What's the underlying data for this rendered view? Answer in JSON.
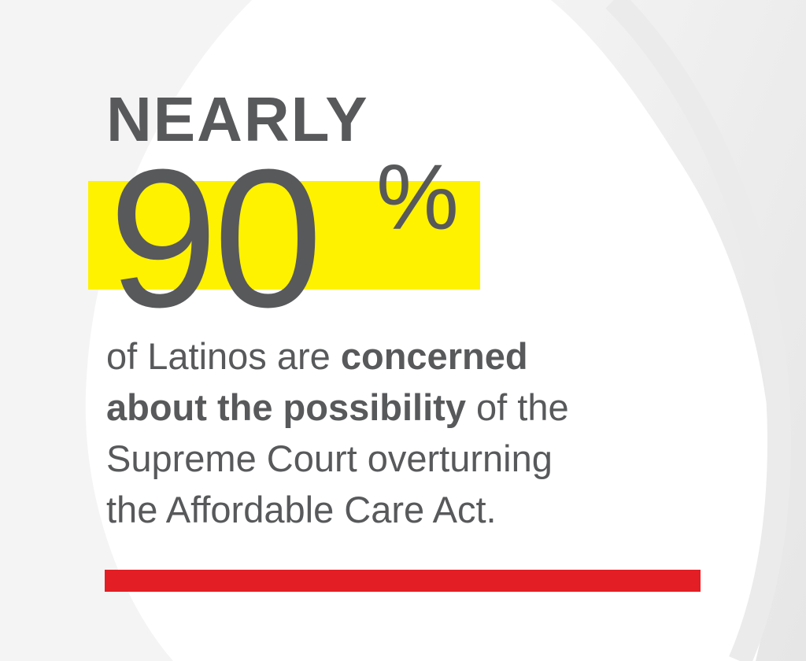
{
  "header": {
    "eyebrow": "NEARLY",
    "figure": "90",
    "unit": "%"
  },
  "statement": {
    "lines": [
      [
        {
          "text": "of Latinos are ",
          "bold": false
        },
        {
          "text": "concerned",
          "bold": true
        }
      ],
      [
        {
          "text": "about the possibility",
          "bold": true
        },
        {
          "text": " of the",
          "bold": false
        }
      ],
      [
        {
          "text": "Supreme Court overturning",
          "bold": false
        }
      ],
      [
        {
          "text": "the Affordable Care Act.",
          "bold": false
        }
      ]
    ]
  }
}
